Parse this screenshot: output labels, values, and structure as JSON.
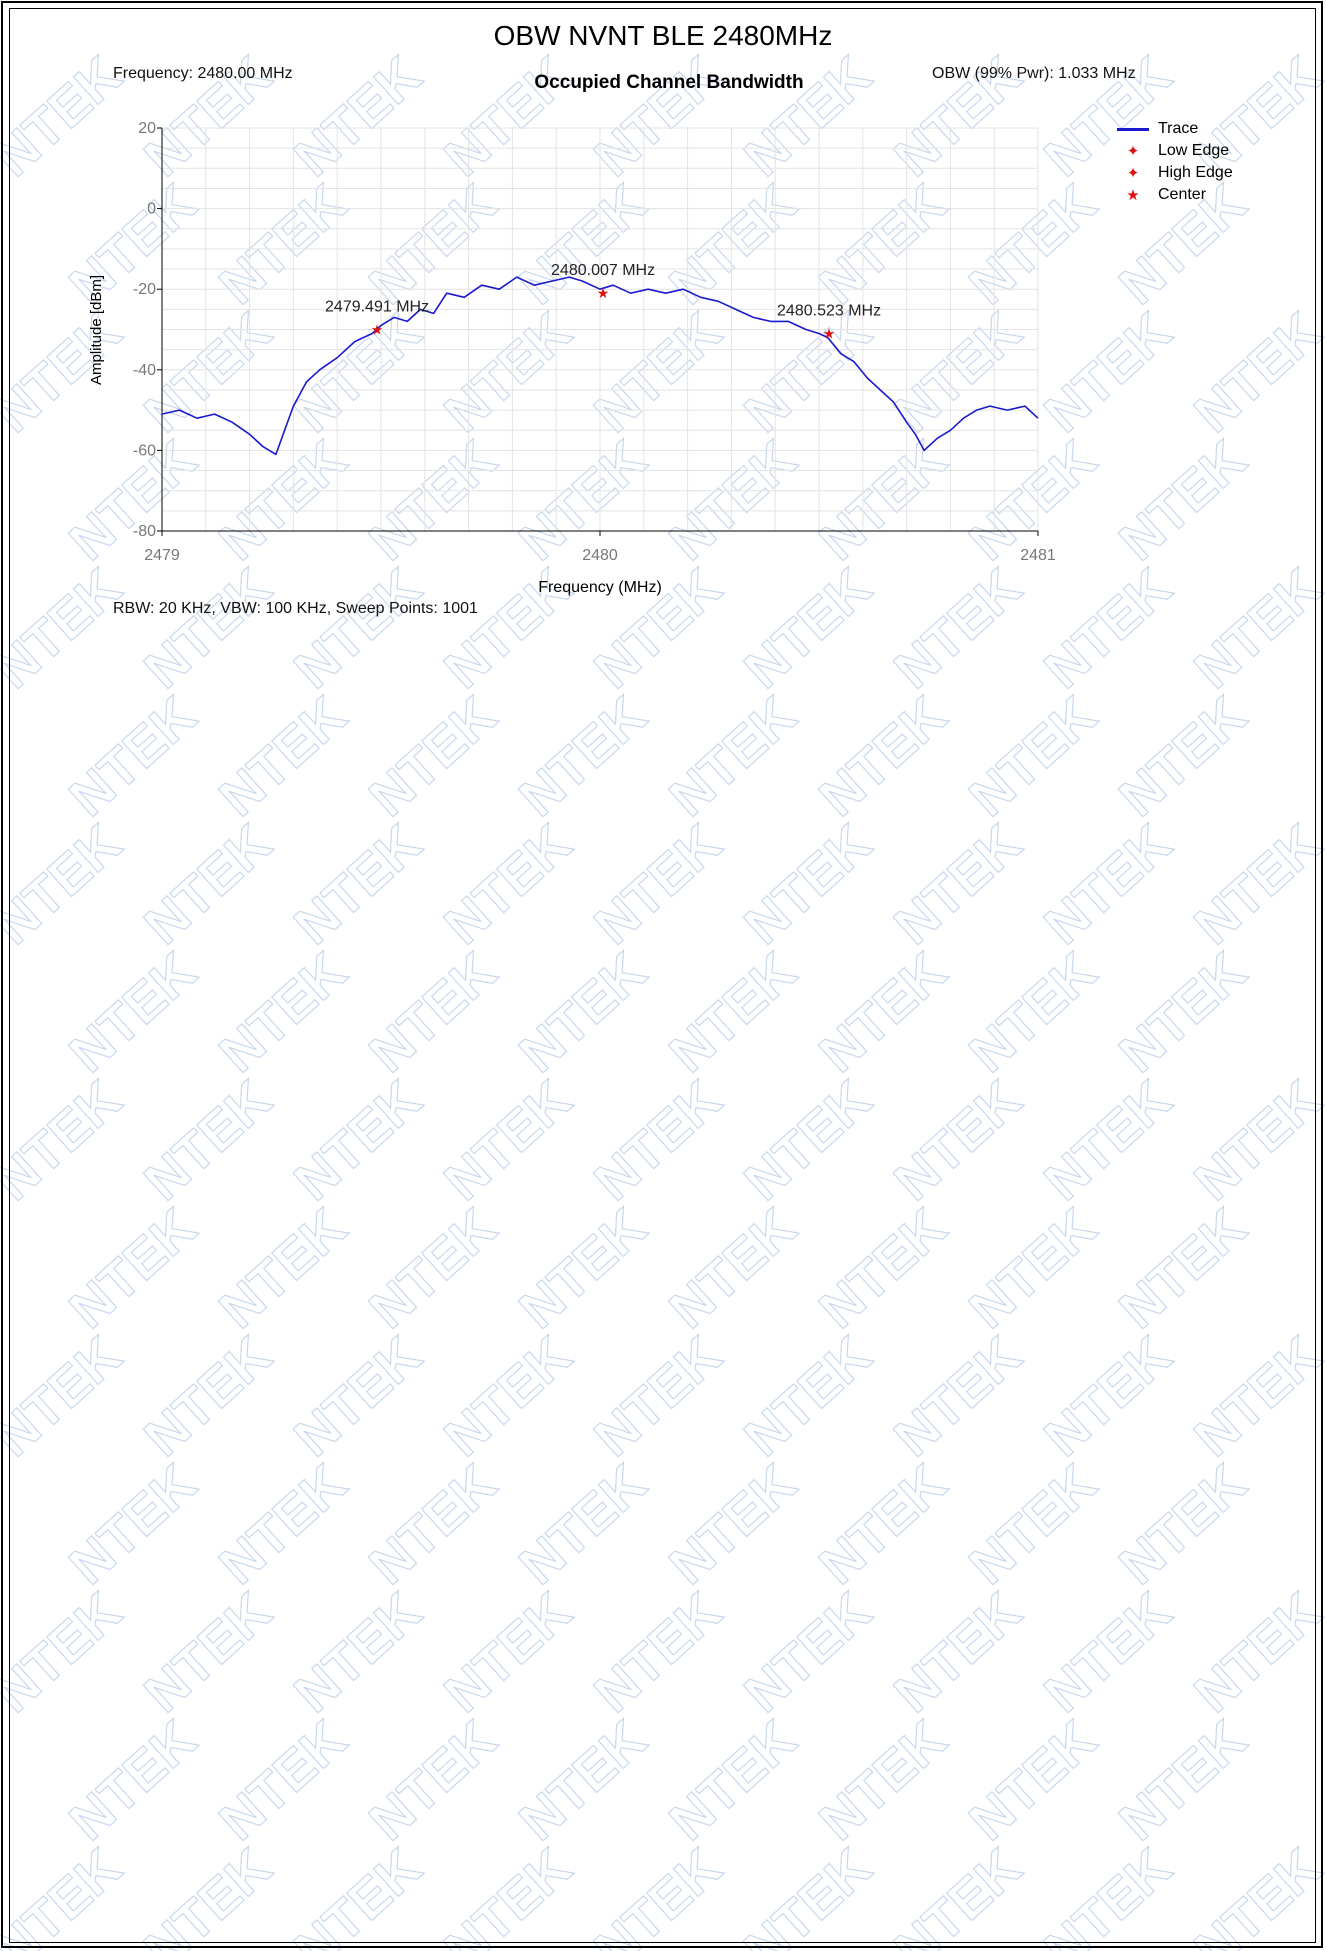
{
  "page_title": "OBW NVNT BLE 2480MHz",
  "info": {
    "frequency": "Frequency: 2480.00 MHz",
    "obw": "OBW (99% Pwr): 1.033 MHz",
    "settings": "RBW: 20 KHz,  VBW: 100 KHz,  Sweep Points: 1001"
  },
  "watermark_text": "NTEK",
  "colors": {
    "trace": "#1a1acc",
    "marker": "#e01010",
    "grid": "#e3e3e3",
    "watermark": "#9db8e0"
  },
  "legend": [
    {
      "label": "Trace",
      "kind": "line"
    },
    {
      "label": "Low Edge",
      "kind": "star"
    },
    {
      "label": "High Edge",
      "kind": "star"
    },
    {
      "label": "Center",
      "kind": "star"
    }
  ],
  "chart_data": {
    "type": "line",
    "title": "Occupied Channel Bandwidth",
    "xlabel": "Frequency (MHz)",
    "ylabel": "Amplitude [dBm]",
    "xlim": [
      2479,
      2481
    ],
    "ylim": [
      -80,
      20
    ],
    "x_ticks": [
      2479,
      2480,
      2481
    ],
    "y_ticks": [
      20,
      0,
      -20,
      -40,
      -60,
      -80
    ],
    "grid": true,
    "legend_position": "top-right",
    "series": [
      {
        "name": "Trace",
        "x": [
          2479.0,
          2479.04,
          2479.08,
          2479.12,
          2479.16,
          2479.2,
          2479.23,
          2479.26,
          2479.28,
          2479.3,
          2479.33,
          2479.36,
          2479.4,
          2479.44,
          2479.48,
          2479.5,
          2479.53,
          2479.56,
          2479.59,
          2479.62,
          2479.65,
          2479.69,
          2479.73,
          2479.77,
          2479.81,
          2479.85,
          2479.89,
          2479.93,
          2479.96,
          2480.0,
          2480.03,
          2480.07,
          2480.11,
          2480.15,
          2480.19,
          2480.23,
          2480.27,
          2480.31,
          2480.35,
          2480.39,
          2480.43,
          2480.47,
          2480.5,
          2480.52,
          2480.55,
          2480.58,
          2480.61,
          2480.64,
          2480.67,
          2480.7,
          2480.72,
          2480.74,
          2480.77,
          2480.8,
          2480.83,
          2480.86,
          2480.89,
          2480.93,
          2480.97,
          2481.0
        ],
        "y": [
          -51,
          -50,
          -52,
          -51,
          -53,
          -56,
          -59,
          -61,
          -55,
          -49,
          -43,
          -40,
          -37,
          -33,
          -31,
          -29,
          -27,
          -28,
          -25,
          -26,
          -21,
          -22,
          -19,
          -20,
          -17,
          -19,
          -18,
          -17,
          -18,
          -20,
          -19,
          -21,
          -20,
          -21,
          -20,
          -22,
          -23,
          -25,
          -27,
          -28,
          -28,
          -30,
          -31,
          -32,
          -36,
          -38,
          -42,
          -45,
          -48,
          -53,
          -56,
          -60,
          -57,
          -55,
          -52,
          -50,
          -49,
          -50,
          -49,
          -52
        ]
      }
    ],
    "markers": [
      {
        "name": "Low Edge",
        "x": 2479.491,
        "y": -30,
        "label": "2479.491 MHz"
      },
      {
        "name": "Center",
        "x": 2480.007,
        "y": -21,
        "label": "2480.007 MHz"
      },
      {
        "name": "High Edge",
        "x": 2480.523,
        "y": -31,
        "label": "2480.523 MHz"
      }
    ]
  }
}
